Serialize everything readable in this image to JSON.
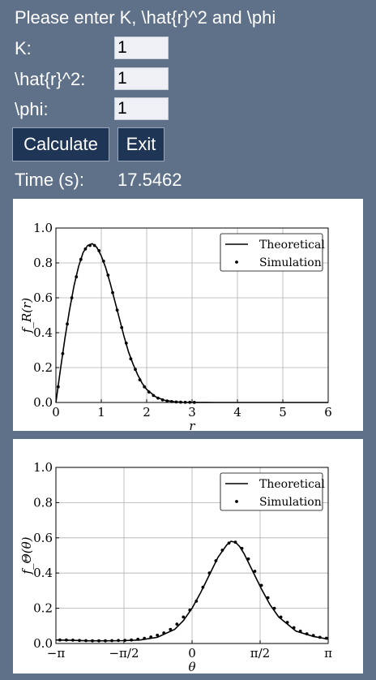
{
  "form": {
    "prompt": "Please enter K, \\hat{r}^2 and \\phi",
    "k_label": "K:",
    "k_value": "1",
    "r2_label": "\\hat{r}^2:",
    "r2_value": "1",
    "phi_label": "\\phi:",
    "phi_value": "1",
    "calculate_label": "Calculate",
    "exit_label": "Exit",
    "time_label": "Time (s):",
    "time_value": "17.5462"
  },
  "chart_data": [
    {
      "type": "line",
      "title": "",
      "xlabel": "r",
      "ylabel": "f_R(r)",
      "xlim": [
        0,
        6
      ],
      "ylim": [
        0,
        1.0
      ],
      "x_ticks": [
        "0",
        "1",
        "2",
        "3",
        "4",
        "5",
        "6"
      ],
      "y_ticks": [
        "0.0",
        "0.2",
        "0.4",
        "0.6",
        "0.8",
        "1.0"
      ],
      "grid": true,
      "legend": "top-right",
      "series": [
        {
          "name": "Theoretical",
          "style": "line",
          "x": [
            0,
            0.1,
            0.2,
            0.3,
            0.4,
            0.5,
            0.6,
            0.7,
            0.8,
            0.9,
            1.0,
            1.1,
            1.2,
            1.3,
            1.4,
            1.5,
            1.6,
            1.7,
            1.8,
            1.9,
            2.0,
            2.2,
            2.4,
            2.6,
            2.8,
            3.0,
            3.5,
            4.0,
            5.0,
            6.0
          ],
          "values": [
            0,
            0.19,
            0.37,
            0.53,
            0.67,
            0.78,
            0.86,
            0.9,
            0.91,
            0.89,
            0.84,
            0.77,
            0.68,
            0.58,
            0.48,
            0.38,
            0.29,
            0.22,
            0.16,
            0.11,
            0.075,
            0.032,
            0.012,
            0.004,
            0.001,
            0.0003,
            0,
            0,
            0,
            0
          ]
        },
        {
          "name": "Simulation",
          "style": "dots",
          "x": [
            0.05,
            0.15,
            0.25,
            0.35,
            0.45,
            0.55,
            0.65,
            0.75,
            0.85,
            0.95,
            1.05,
            1.15,
            1.25,
            1.35,
            1.45,
            1.55,
            1.65,
            1.75,
            1.85,
            1.95,
            2.05,
            2.15,
            2.25,
            2.35,
            2.45,
            2.55,
            2.65,
            2.75,
            2.85,
            2.95,
            3.05
          ],
          "values": [
            0.09,
            0.28,
            0.45,
            0.6,
            0.72,
            0.82,
            0.88,
            0.9,
            0.9,
            0.87,
            0.81,
            0.73,
            0.63,
            0.53,
            0.43,
            0.34,
            0.25,
            0.19,
            0.13,
            0.09,
            0.06,
            0.04,
            0.025,
            0.015,
            0.009,
            0.005,
            0.003,
            0.002,
            0.001,
            0.001,
            0.0005
          ]
        }
      ]
    },
    {
      "type": "line",
      "title": "",
      "xlabel": "θ",
      "ylabel": "f_Θ(θ)",
      "xlim": [
        -3.14159,
        3.14159
      ],
      "ylim": [
        0,
        1.0
      ],
      "x_ticks": [
        "−π",
        "−π/2",
        "0",
        "π/2",
        "π"
      ],
      "y_ticks": [
        "0.0",
        "0.2",
        "0.4",
        "0.6",
        "0.8",
        "1.0"
      ],
      "grid": true,
      "legend": "top-right",
      "series": [
        {
          "name": "Theoretical",
          "style": "line",
          "x": [
            -3.14,
            -2.8,
            -2.4,
            -2.0,
            -1.6,
            -1.2,
            -0.8,
            -0.4,
            -0.2,
            0,
            0.2,
            0.4,
            0.6,
            0.8,
            0.9,
            1.0,
            1.1,
            1.2,
            1.4,
            1.6,
            1.8,
            2.0,
            2.4,
            2.8,
            3.14
          ],
          "values": [
            0.02,
            0.018,
            0.015,
            0.015,
            0.016,
            0.02,
            0.035,
            0.08,
            0.13,
            0.2,
            0.29,
            0.39,
            0.49,
            0.56,
            0.58,
            0.575,
            0.55,
            0.51,
            0.41,
            0.31,
            0.22,
            0.15,
            0.07,
            0.04,
            0.025
          ]
        },
        {
          "name": "Simulation",
          "style": "dots",
          "x": [
            -3.05,
            -2.9,
            -2.75,
            -2.6,
            -2.45,
            -2.3,
            -2.15,
            -2.0,
            -1.85,
            -1.7,
            -1.55,
            -1.4,
            -1.25,
            -1.1,
            -0.95,
            -0.8,
            -0.65,
            -0.5,
            -0.35,
            -0.2,
            -0.05,
            0.1,
            0.25,
            0.4,
            0.55,
            0.7,
            0.85,
            1.0,
            1.15,
            1.3,
            1.45,
            1.6,
            1.75,
            1.9,
            2.05,
            2.2,
            2.35,
            2.5,
            2.65,
            2.8,
            2.95,
            3.1
          ],
          "values": [
            0.02,
            0.02,
            0.019,
            0.017,
            0.016,
            0.015,
            0.015,
            0.015,
            0.016,
            0.017,
            0.018,
            0.02,
            0.024,
            0.029,
            0.037,
            0.047,
            0.06,
            0.08,
            0.11,
            0.15,
            0.19,
            0.24,
            0.32,
            0.4,
            0.47,
            0.53,
            0.57,
            0.575,
            0.54,
            0.48,
            0.41,
            0.33,
            0.26,
            0.2,
            0.15,
            0.12,
            0.09,
            0.07,
            0.055,
            0.045,
            0.035,
            0.03
          ]
        }
      ]
    }
  ]
}
